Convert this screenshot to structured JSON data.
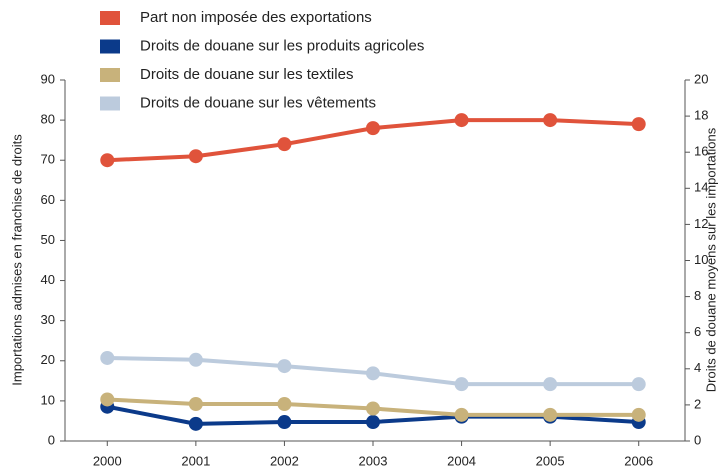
{
  "chart_data": {
    "type": "line",
    "categories": [
      "2000",
      "2001",
      "2002",
      "2003",
      "2004",
      "2005",
      "2006"
    ],
    "y_label": "Importations admises en franchise de droits",
    "y2_label": "Droits de douane moyens sur les importations",
    "ylim": [
      0,
      90
    ],
    "yticks": [
      0,
      10,
      20,
      30,
      40,
      50,
      60,
      70,
      80,
      90
    ],
    "y2lim": [
      0,
      20
    ],
    "y2ticks": [
      0,
      2,
      4,
      6,
      8,
      10,
      12,
      14,
      16,
      18,
      20
    ],
    "legend": "top-left",
    "series": [
      {
        "name": "Part non imposée des exportations",
        "color": "#e0533b",
        "values": [
          70,
          71,
          74,
          78,
          80,
          80,
          79
        ]
      },
      {
        "name": "Droits de douane sur les produits agricoles",
        "color": "#0b3a8a",
        "axis": "y2",
        "values": [
          1.9,
          0.95,
          1.05,
          1.05,
          1.35,
          1.35,
          1.05
        ]
      },
      {
        "name": "Droits de douane sur les textiles",
        "color": "#c8b27b",
        "axis": "y2",
        "values": [
          2.3,
          2.05,
          2.05,
          1.8,
          1.45,
          1.45,
          1.45
        ]
      },
      {
        "name": "Droits de douane sur les vêtements",
        "color": "#bccbdd",
        "axis": "y2",
        "values": [
          4.6,
          4.5,
          4.15,
          3.75,
          3.15,
          3.15,
          3.15
        ]
      }
    ]
  }
}
